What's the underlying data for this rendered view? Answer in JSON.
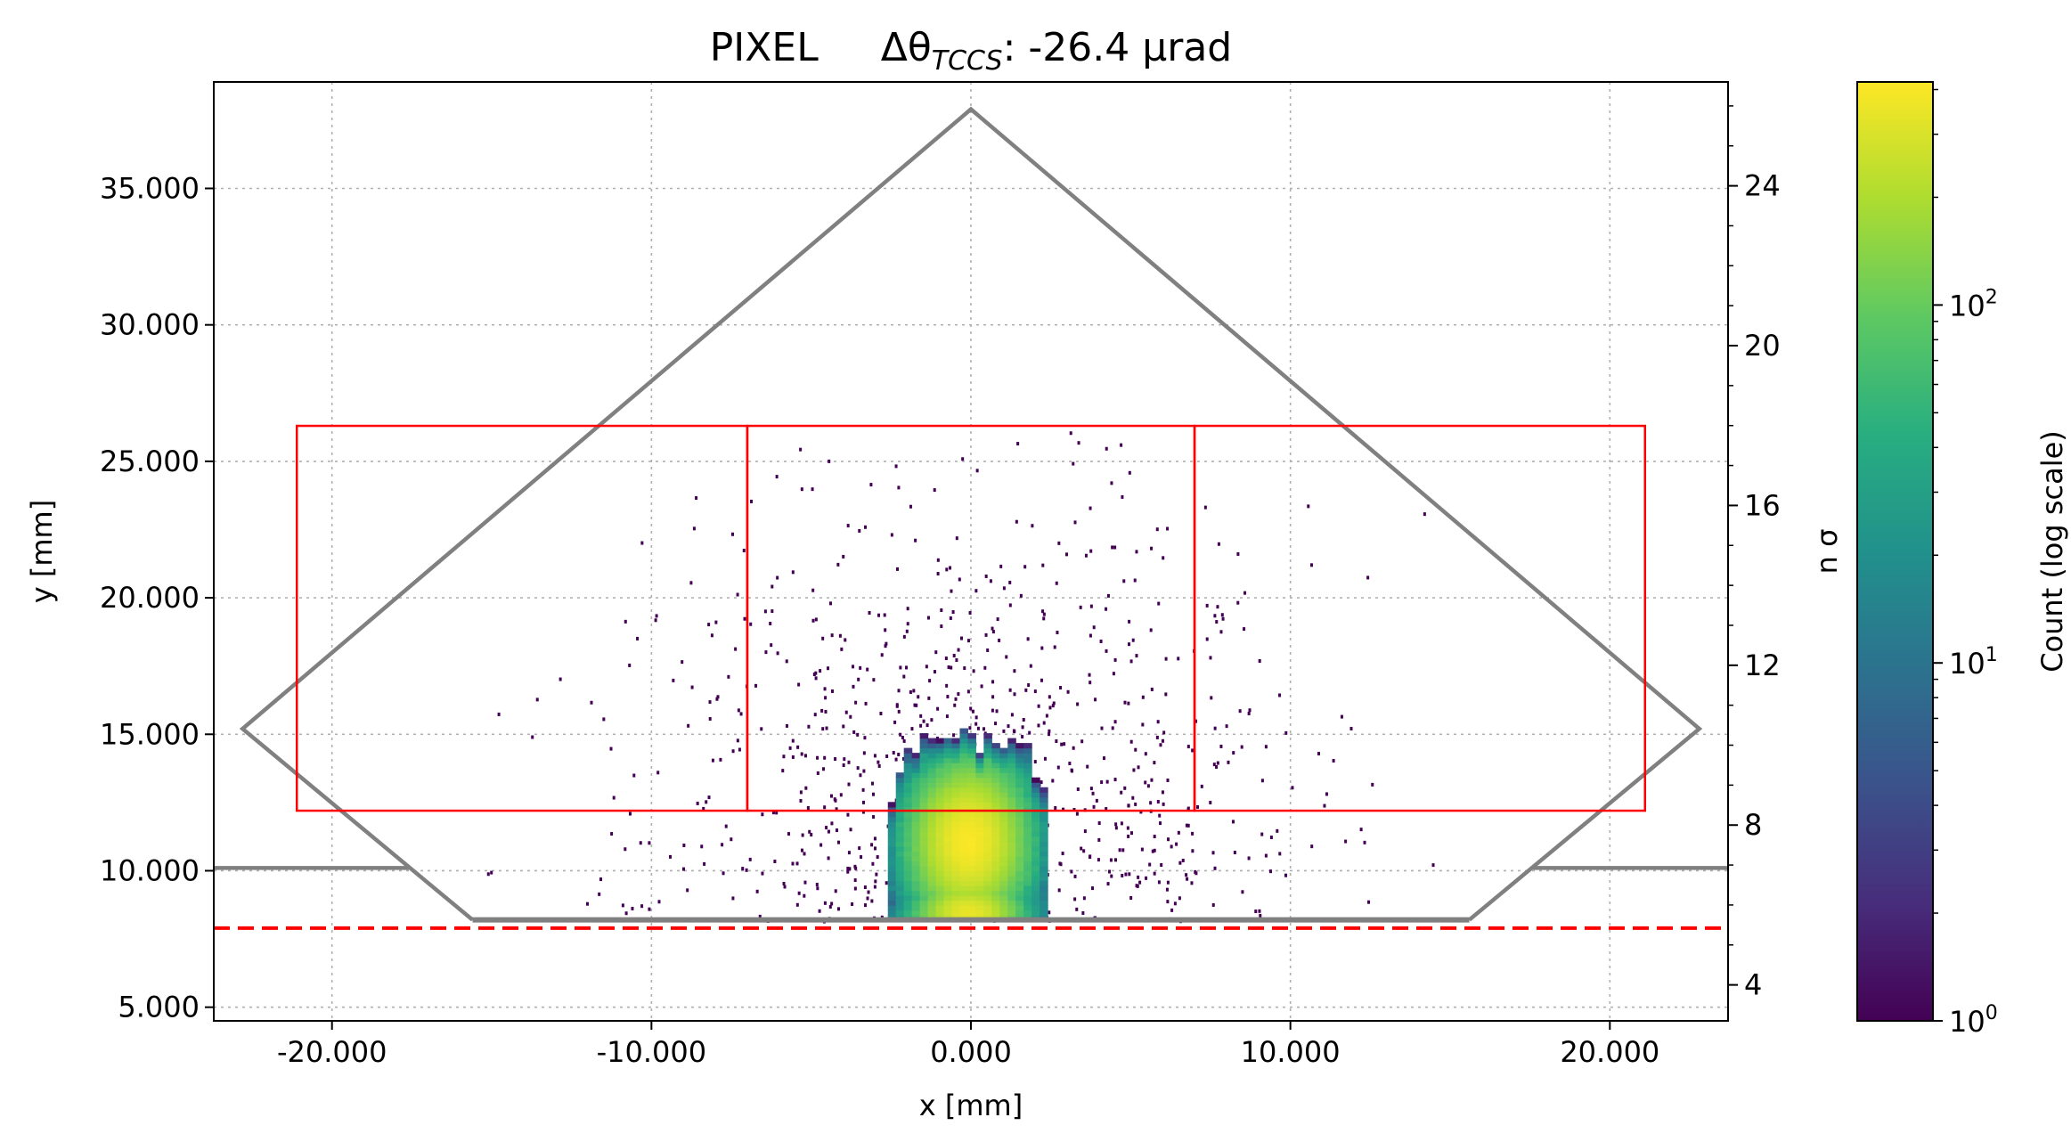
{
  "chart_data": {
    "type": "heatmap",
    "title": {
      "prefix": "PIXEL",
      "symbol": "Δθ",
      "subscript": "TCCS",
      "value_text": ": -26.4 μrad"
    },
    "xlabel": "x [mm]",
    "ylabel": "y [mm]",
    "ylabel_right": "n σ",
    "colorbar_label": "Count (log scale)",
    "xlim": [
      -23.7,
      23.7
    ],
    "ylim": [
      4.5,
      38.9
    ],
    "right_ylim": [
      3.1,
      26.6
    ],
    "colorbar_lim": [
      1,
      420
    ],
    "colormap": "viridis",
    "grid": true,
    "x_ticks": [
      {
        "v": -20,
        "label": "-20.000"
      },
      {
        "v": -10,
        "label": "-10.000"
      },
      {
        "v": 0,
        "label": "0.000"
      },
      {
        "v": 10,
        "label": "10.000"
      },
      {
        "v": 20,
        "label": "20.000"
      }
    ],
    "y_ticks": [
      {
        "v": 5,
        "label": "5.000"
      },
      {
        "v": 10,
        "label": "10.000"
      },
      {
        "v": 15,
        "label": "15.000"
      },
      {
        "v": 20,
        "label": "20.000"
      },
      {
        "v": 25,
        "label": "25.000"
      },
      {
        "v": 30,
        "label": "30.000"
      },
      {
        "v": 35,
        "label": "35.000"
      }
    ],
    "right_ticks": [
      {
        "v": 4,
        "label": "4"
      },
      {
        "v": 8,
        "label": "8"
      },
      {
        "v": 12,
        "label": "12"
      },
      {
        "v": 16,
        "label": "16"
      },
      {
        "v": 20,
        "label": "20"
      },
      {
        "v": 24,
        "label": "24"
      }
    ],
    "colorbar_ticks": [
      {
        "v": 1,
        "base": "10",
        "exp": "0"
      },
      {
        "v": 10,
        "base": "10",
        "exp": "1"
      },
      {
        "v": 100,
        "base": "10",
        "exp": "2"
      }
    ],
    "outline": {
      "color": "#808080",
      "polygon": [
        [
          -15.6,
          8.2
        ],
        [
          -22.8,
          15.2
        ],
        [
          0,
          37.9
        ],
        [
          22.8,
          15.2
        ],
        [
          15.6,
          8.2
        ]
      ],
      "side_lines": [
        [
          [
            -23.7,
            10.1
          ],
          [
            -17.6,
            10.1
          ]
        ],
        [
          [
            17.6,
            10.1
          ],
          [
            23.7,
            10.1
          ]
        ]
      ],
      "baseline": [
        [
          -15.6,
          8.2
        ],
        [
          15.6,
          8.2
        ]
      ]
    },
    "boxes": {
      "color": "#ff0000",
      "rects": [
        {
          "x0": -21.1,
          "x1": -7.0,
          "y0": 12.2,
          "y1": 26.3
        },
        {
          "x0": -7.0,
          "x1": 7.0,
          "y0": 12.2,
          "y1": 26.3
        },
        {
          "x0": 7.0,
          "x1": 21.1,
          "y0": 12.2,
          "y1": 26.3
        }
      ]
    },
    "cut_line": {
      "y": 7.9,
      "color": "#ff0000",
      "style": "dashed"
    },
    "density": {
      "core": {
        "x_center": -0.2,
        "x_half_width": 2.6,
        "y_min": 8.2,
        "y_max": 14.8,
        "peak_count": 400
      },
      "halo": {
        "x_range": [
          -16,
          16
        ],
        "y_range": [
          8.2,
          26.2
        ],
        "count": 1
      }
    }
  }
}
